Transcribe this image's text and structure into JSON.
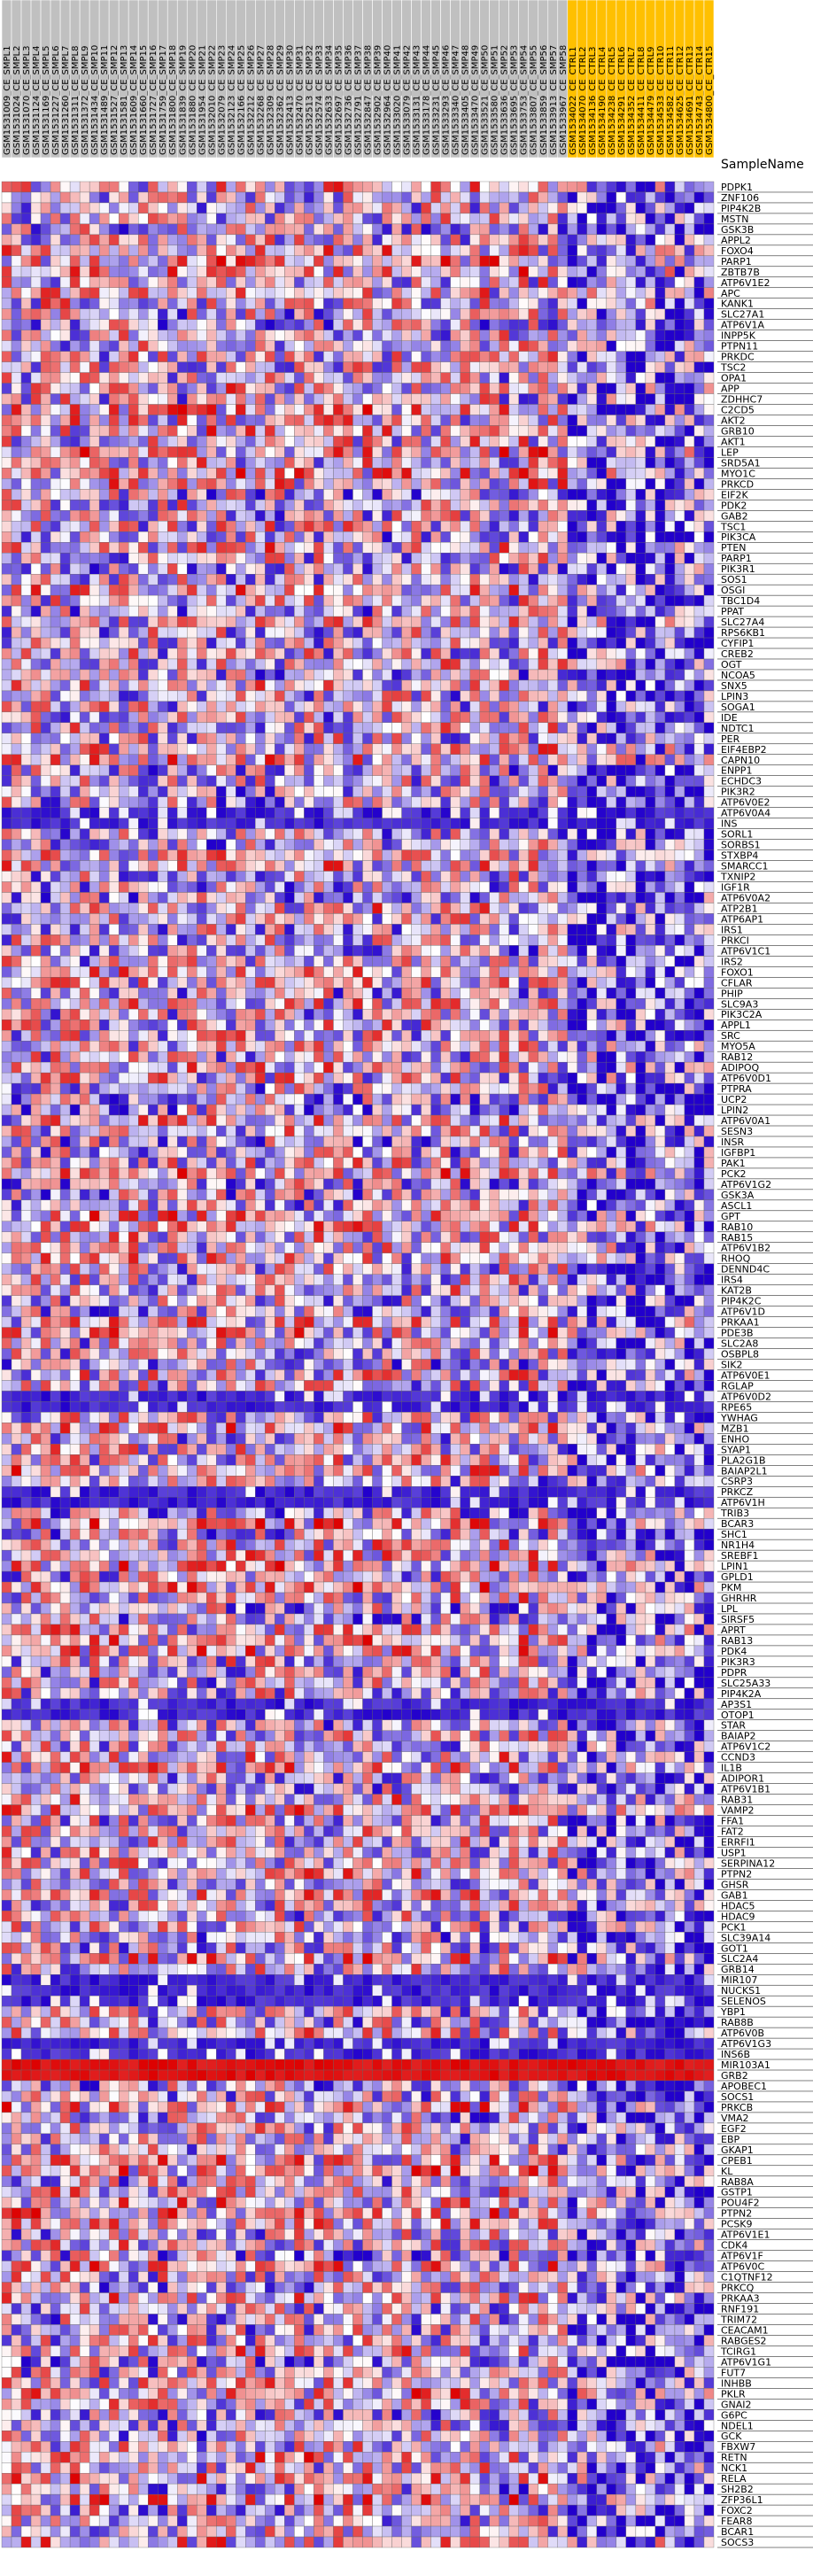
{
  "chart_data": {
    "type": "heatmap",
    "header_label": "SampleName",
    "colors": {
      "low": "#2200cc",
      "mid": "#ffffff",
      "high": "#dd0000",
      "control_group": "#ffc000",
      "sample_group": "#c0c0c0"
    },
    "columns": [
      {
        "name": "GSM1531009_CE_SMPL1",
        "group": "sample"
      },
      {
        "name": "GSM1531024_CE_SMPL2",
        "group": "sample"
      },
      {
        "name": "GSM1531070_CE_SMPL3",
        "group": "sample"
      },
      {
        "name": "GSM1531124_CE_SMPL4",
        "group": "sample"
      },
      {
        "name": "GSM1531169_CE_SMPL5",
        "group": "sample"
      },
      {
        "name": "GSM1531227_CE_SMPL6",
        "group": "sample"
      },
      {
        "name": "GSM1531260_CE_SMPL7",
        "group": "sample"
      },
      {
        "name": "GSM1531311_CE_SMPL8",
        "group": "sample"
      },
      {
        "name": "GSM1531372_CE_SMPL9",
        "group": "sample"
      },
      {
        "name": "GSM1531434_CE_SMP10",
        "group": "sample"
      },
      {
        "name": "GSM1531489_CE_SMP11",
        "group": "sample"
      },
      {
        "name": "GSM1531527_CE_SMP12",
        "group": "sample"
      },
      {
        "name": "GSM1531581_CE_SMP13",
        "group": "sample"
      },
      {
        "name": "GSM1531609_CE_SMP14",
        "group": "sample"
      },
      {
        "name": "GSM1531660_CE_SMP15",
        "group": "sample"
      },
      {
        "name": "GSM1531727_CE_SMP16",
        "group": "sample"
      },
      {
        "name": "GSM1531759_CE_SMP17",
        "group": "sample"
      },
      {
        "name": "GSM1531800_CE_SMP18",
        "group": "sample"
      },
      {
        "name": "GSM1531839_CE_SMP19",
        "group": "sample"
      },
      {
        "name": "GSM1531880_CE_SMP20",
        "group": "sample"
      },
      {
        "name": "GSM1531954_CE_SMP21",
        "group": "sample"
      },
      {
        "name": "GSM1532010_CE_SMP22",
        "group": "sample"
      },
      {
        "name": "GSM1532079_CE_SMP23",
        "group": "sample"
      },
      {
        "name": "GSM1532123_CE_SMP24",
        "group": "sample"
      },
      {
        "name": "GSM1532166_CE_SMP25",
        "group": "sample"
      },
      {
        "name": "GSM1532212_CE_SMP26",
        "group": "sample"
      },
      {
        "name": "GSM1532268_CE_SMP27",
        "group": "sample"
      },
      {
        "name": "GSM1532309_CE_SMP28",
        "group": "sample"
      },
      {
        "name": "GSM1532362_CE_SMP29",
        "group": "sample"
      },
      {
        "name": "GSM1532413_CE_SMP30",
        "group": "sample"
      },
      {
        "name": "GSM1532470_CE_SMP31",
        "group": "sample"
      },
      {
        "name": "GSM1532513_CE_SMP32",
        "group": "sample"
      },
      {
        "name": "GSM1532574_CE_SMP33",
        "group": "sample"
      },
      {
        "name": "GSM1532633_CE_SMP34",
        "group": "sample"
      },
      {
        "name": "GSM1532697_CE_SMP35",
        "group": "sample"
      },
      {
        "name": "GSM1532736_CE_SMP36",
        "group": "sample"
      },
      {
        "name": "GSM1532791_CE_SMP37",
        "group": "sample"
      },
      {
        "name": "GSM1532847_CE_SMP38",
        "group": "sample"
      },
      {
        "name": "GSM1532902_CE_SMP39",
        "group": "sample"
      },
      {
        "name": "GSM1532964_CE_SMP40",
        "group": "sample"
      },
      {
        "name": "GSM1533020_CE_SMP41",
        "group": "sample"
      },
      {
        "name": "GSM1533079_CE_SMP42",
        "group": "sample"
      },
      {
        "name": "GSM1533131_CE_SMP43",
        "group": "sample"
      },
      {
        "name": "GSM1533178_CE_SMP44",
        "group": "sample"
      },
      {
        "name": "GSM1533231_CE_SMP45",
        "group": "sample"
      },
      {
        "name": "GSM1533293_CE_SMP46",
        "group": "sample"
      },
      {
        "name": "GSM1533340_CE_SMP47",
        "group": "sample"
      },
      {
        "name": "GSM1533405_CE_SMP48",
        "group": "sample"
      },
      {
        "name": "GSM1533470_CE_SMP49",
        "group": "sample"
      },
      {
        "name": "GSM1533521_CE_SMP50",
        "group": "sample"
      },
      {
        "name": "GSM1533580_CE_SMP51",
        "group": "sample"
      },
      {
        "name": "GSM1533636_CE_SMP52",
        "group": "sample"
      },
      {
        "name": "GSM1533695_CE_SMP53",
        "group": "sample"
      },
      {
        "name": "GSM1533753_CE_SMP54",
        "group": "sample"
      },
      {
        "name": "GSM1533807_CE_SMP55",
        "group": "sample"
      },
      {
        "name": "GSM1533859_CE_SMP56",
        "group": "sample"
      },
      {
        "name": "GSM1533913_CE_SMP57",
        "group": "sample"
      },
      {
        "name": "GSM1533967_CE_SMP58",
        "group": "sample"
      },
      {
        "name": "GSM1534022_CE_CTRL1",
        "group": "control"
      },
      {
        "name": "GSM1534070_CE_CTRL2",
        "group": "control"
      },
      {
        "name": "GSM1534136_CE_CTRL3",
        "group": "control"
      },
      {
        "name": "GSM1534190_CE_CTRL4",
        "group": "control"
      },
      {
        "name": "GSM1534238_CE_CTRL5",
        "group": "control"
      },
      {
        "name": "GSM1534291_CE_CTRL6",
        "group": "control"
      },
      {
        "name": "GSM1534352_CE_CTRL7",
        "group": "control"
      },
      {
        "name": "GSM1534411_CE_CTRL8",
        "group": "control"
      },
      {
        "name": "GSM1534479_CE_CTRL9",
        "group": "control"
      },
      {
        "name": "GSM1534533_CE_CTR10",
        "group": "control"
      },
      {
        "name": "GSM1534582_CE_CTR11",
        "group": "control"
      },
      {
        "name": "GSM1534625_CE_CTR12",
        "group": "control"
      },
      {
        "name": "GSM1534691_CE_CTR13",
        "group": "control"
      },
      {
        "name": "GSM1534743_CE_CTR14",
        "group": "control"
      },
      {
        "name": "GSM1534800_CE_CTR15",
        "group": "control"
      }
    ],
    "rows": [
      "PDPK1",
      "ZNF106",
      "PIP4K2B",
      "MSTN",
      "GSK3B",
      "APPL2",
      "FOXO4",
      "PARP1",
      "ZBTB7B",
      "ATP6V1E2",
      "APC",
      "KANK1",
      "SLC27A1",
      "ATP6V1A",
      "INPP5K",
      "PTPN11",
      "PRKDC",
      "TSC2",
      "OPA1",
      "APP",
      "ZDHHC7",
      "C2CD5",
      "AKT2",
      "GRB10",
      "AKT1",
      "LEP",
      "SRD5A1",
      "MYO1C",
      "PRKCD",
      "EIF2K",
      "PDK2",
      "GAB2",
      "TSC1",
      "PIK3CA",
      "PTEN",
      "PARP1",
      "PIK3R1",
      "SOS1",
      "OSGI",
      "TBC1D4",
      "PPAT",
      "SLC27A4",
      "RPS6KB1",
      "CYFIP1",
      "CREB2",
      "OGT",
      "NCOA5",
      "SNX5",
      "LPIN3",
      "SOGA1",
      "IDE",
      "NDTC1",
      "PER",
      "EIF4EBP2",
      "CAPN10",
      "ENPP1",
      "ECHDC3",
      "PIK3R2",
      "ATP6V0E2",
      "ATP6V0A4",
      "INS",
      "SORL1",
      "SORBS1",
      "STXBP4",
      "SMARCC1",
      "TXNIP2",
      "IGF1R",
      "ATP6V0A2",
      "ATP2B1",
      "ATP6AP1",
      "IRS1",
      "PRKCI",
      "ATP6V1C1",
      "IRS2",
      "FOXO1",
      "CFLAR",
      "PHIP",
      "SLC9A3",
      "PIK3C2A",
      "APPL1",
      "SRC",
      "MYO5A",
      "RAB12",
      "ADIPOQ",
      "ATP6V0D1",
      "PTPRA",
      "UCP2",
      "LPIN2",
      "ATP6V0A1",
      "SESN3",
      "INSR",
      "IGFBP1",
      "PAK1",
      "PCK2",
      "ATP6V1G2",
      "GSK3A",
      "ASCL1",
      "GPT",
      "RAB10",
      "RAB15",
      "ATP6V1B2",
      "RHOQ",
      "DENND4C",
      "IRS4",
      "KAT2B",
      "PIP4K2C",
      "ATP6V1D",
      "PRKAA1",
      "PDE3B",
      "SLC2A8",
      "OSBPL8",
      "SIK2",
      "ATP6V0E1",
      "RGLAP",
      "ATP6V0D2",
      "RPE65",
      "YWHAG",
      "MZB1",
      "ENHO",
      "SYAP1",
      "PLA2G1B",
      "BAIAP2L1",
      "CSRP3",
      "PRKCZ",
      "ATP6V1H",
      "TRIB3",
      "BCAR3",
      "SHC1",
      "NR1H4",
      "SREBF1",
      "LPIN1",
      "GPLD1",
      "PKM",
      "GHRHR",
      "LPL",
      "SIRSF5",
      "APRT",
      "RAB13",
      "PDK4",
      "PIK3R3",
      "PDPR",
      "SLC25A33",
      "PIP4K2A",
      "AP3S1",
      "OTOP1",
      "STAR",
      "BAIAP2",
      "ATP6V1C2",
      "CCND3",
      "IL1B",
      "ADIPOR1",
      "ATP6V1B1",
      "RAB31",
      "VAMP2",
      "FFA1",
      "FAT2",
      "ERRFI1",
      "USP1",
      "SERPINA12",
      "PTPN2",
      "GHSR",
      "GAB1",
      "HDAC5",
      "HDAC9",
      "PCK1",
      "SLC39A14",
      "GOT1",
      "SLC2A4",
      "GRB14",
      "MIR107",
      "NUCKS1",
      "SELENOS",
      "YBP1",
      "RAB8B",
      "ATP6V0B",
      "ATP6V1G3",
      "INS6B",
      "MIR103A1",
      "GRB2",
      "APOBEC1",
      "SOCS1",
      "PRKCB",
      "VMA2",
      "EGF2",
      "EBP",
      "GKAP1",
      "CPEB1",
      "KL",
      "RAB8A",
      "GSTP1",
      "POU4F2",
      "PTPN2",
      "PCSK9",
      "ATP6V1E1",
      "CDK4",
      "ATP6V1F",
      "ATP6V0C",
      "C1QTNF12",
      "PRKCQ",
      "PRKAA3",
      "RNF191",
      "TRIM72",
      "CEACAM1",
      "RABGES2",
      "TCIRG1",
      "ATP6V1G1",
      "FUT7",
      "INHBB",
      "PKLR",
      "GNAI2",
      "G6PC",
      "NDEL1",
      "GCK",
      "FBXW7",
      "RETN",
      "NCK1",
      "RELA",
      "SH2B2",
      "ZFP36L1",
      "FOXC2",
      "FEAR8",
      "BCAR1",
      "SOCS3"
    ],
    "value_range": [
      -3,
      3
    ],
    "hot_rows": [
      "MIR103A1",
      "GRB2"
    ],
    "cold_rows": [
      "ATP6V0A4",
      "INS",
      "ATP6V0D2",
      "RPE65",
      "PRKCZ",
      "ATP6V1H",
      "AP3S1",
      "OTOP1",
      "MIR107",
      "NUCKS1",
      "SELENOS",
      "ATP6V1G3",
      "INS6B"
    ]
  }
}
